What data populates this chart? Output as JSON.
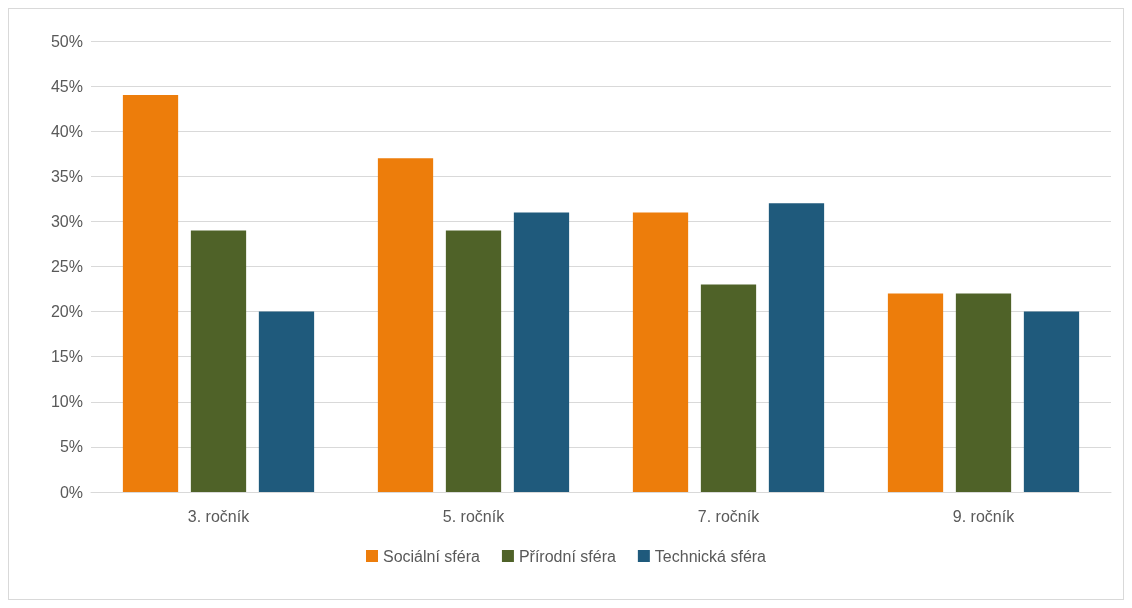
{
  "chart_data": {
    "type": "bar",
    "categories": [
      "3. ročník",
      "5. ročník",
      "7. ročník",
      "9. ročník"
    ],
    "series": [
      {
        "name": "Sociální sféra",
        "color": "#ed7d0b",
        "values": [
          44,
          37,
          31,
          22
        ]
      },
      {
        "name": "Přírodní sféra",
        "color": "#4f6228",
        "values": [
          29,
          29,
          23,
          22
        ]
      },
      {
        "name": "Technická sféra",
        "color": "#1f5a7c",
        "values": [
          20,
          31,
          32,
          20
        ]
      }
    ],
    "ylim": [
      0,
      50
    ],
    "yticks": [
      {
        "value": 0,
        "label": "0%"
      },
      {
        "value": 5,
        "label": "5%"
      },
      {
        "value": 10,
        "label": "10%"
      },
      {
        "value": 15,
        "label": "15%"
      },
      {
        "value": 20,
        "label": "20%"
      },
      {
        "value": 25,
        "label": "25%"
      },
      {
        "value": 30,
        "label": "30%"
      },
      {
        "value": 35,
        "label": "35%"
      },
      {
        "value": 40,
        "label": "40%"
      },
      {
        "value": 45,
        "label": "45%"
      },
      {
        "value": 50,
        "label": "50%"
      }
    ],
    "grid": "y",
    "legend": "bottom"
  }
}
